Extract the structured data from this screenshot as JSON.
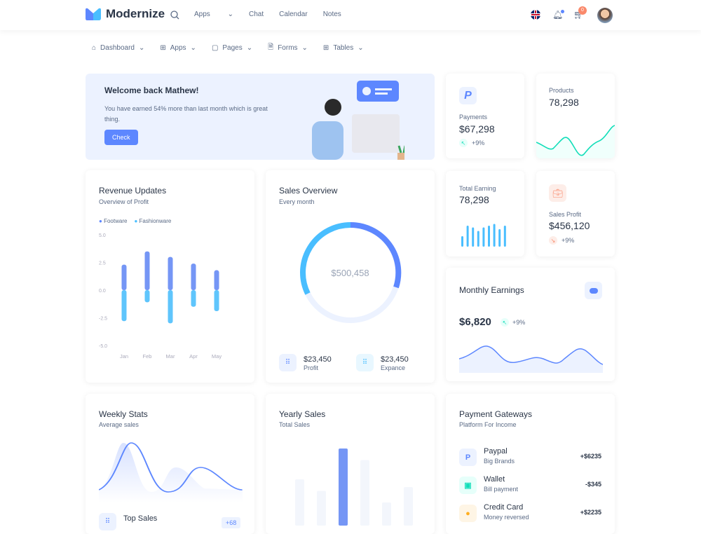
{
  "header": {
    "brand": "Modernize",
    "nav": [
      "Apps",
      "Chat",
      "Calendar",
      "Notes"
    ],
    "cart_count": "0"
  },
  "subnav": [
    "Dashboard",
    "Apps",
    "Pages",
    "Forms",
    "Tables"
  ],
  "welcome": {
    "title": "Welcome back Mathew!",
    "text": "You have earned 54% more than last month which is great thing.",
    "button": "Check"
  },
  "payments": {
    "label": "Payments",
    "value": "$67,298",
    "change": "+9%"
  },
  "products": {
    "label": "Products",
    "value": "78,298"
  },
  "total_earning": {
    "label": "Total Earning",
    "value": "78,298"
  },
  "sales_profit": {
    "label": "Sales Profit",
    "value": "$456,120",
    "change": "+9%"
  },
  "revenue": {
    "title": "Revenue Updates",
    "subtitle": "Overview of Profit"
  },
  "sales_overview": {
    "title": "Sales Overview",
    "subtitle": "Every month",
    "center": "$500,458",
    "profit": {
      "value": "$23,450",
      "label": "Profit"
    },
    "expense": {
      "value": "$23,450",
      "label": "Expance"
    }
  },
  "monthly": {
    "title": "Monthly Earnings",
    "value": "$6,820",
    "change": "+9%"
  },
  "weekly": {
    "title": "Weekly Stats",
    "subtitle": "Average sales",
    "top_sales": "Top Sales",
    "badge": "+68"
  },
  "yearly": {
    "title": "Yearly Sales",
    "subtitle": "Total Sales"
  },
  "gateways": {
    "title": "Payment Gateways",
    "subtitle": "Platform For Income",
    "items": [
      {
        "name": "Paypal",
        "sub": "Big Brands",
        "amount": "+$6235"
      },
      {
        "name": "Wallet",
        "sub": "Bill payment",
        "amount": "-$345"
      },
      {
        "name": "Credit Card",
        "sub": "Money reversed",
        "amount": "+$2235"
      }
    ]
  },
  "colors": {
    "primary": "#5d87ff",
    "secondary": "#49beff",
    "success": "#13deb9",
    "warning": "#ffae1f",
    "error": "#fa896b"
  },
  "chart_data": {
    "type": "bar",
    "categories": [
      "Jan",
      "Feb",
      "Mar",
      "Apr",
      "May"
    ],
    "ylim": [
      -5,
      5
    ],
    "yticks": [
      "5.0",
      "2.5",
      "0.0",
      "-2.5",
      "-5.0"
    ],
    "series": [
      {
        "name": "Footware",
        "values": [
          2.3,
          3.5,
          3.0,
          2.4,
          1.8
        ]
      },
      {
        "name": "Fashionware",
        "values": [
          -2.8,
          -1.1,
          -3.0,
          -1.5,
          -1.9
        ]
      }
    ],
    "legend": "top-left"
  },
  "total_earning_bars": [
    3,
    6,
    5.5,
    4.5,
    5.5,
    6,
    6.5,
    5,
    6
  ],
  "yearly_bars": [
    6,
    4.5,
    10,
    8.5,
    3,
    5
  ]
}
